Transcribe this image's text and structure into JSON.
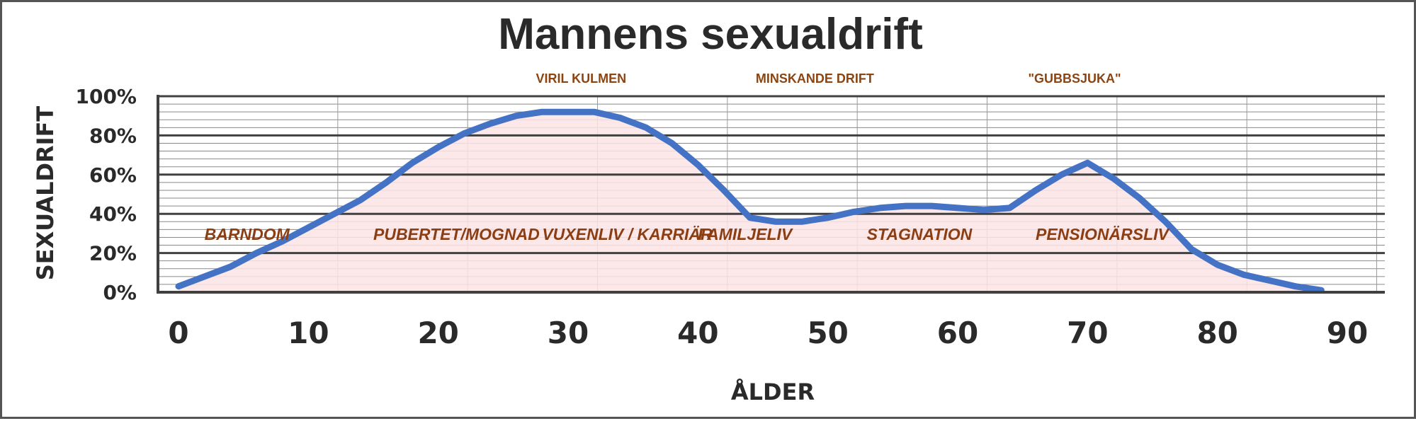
{
  "chart_data": {
    "type": "area",
    "title": "Mannens sexualdrift",
    "xlabel": "ÅLDER",
    "ylabel": "SEXUALDRIFT",
    "xlim": [
      0,
      90
    ],
    "ylim": [
      0,
      100
    ],
    "x_ticks": [
      0,
      10,
      20,
      30,
      40,
      50,
      60,
      70,
      80,
      90
    ],
    "x_tick_labels": [
      "0",
      "10",
      "20",
      "30",
      "40",
      "50",
      "60",
      "70",
      "80",
      "90"
    ],
    "y_ticks": [
      0,
      20,
      40,
      60,
      80,
      100
    ],
    "y_tick_labels": [
      "0%",
      "20%",
      "40%",
      "60%",
      "80%",
      "100%"
    ],
    "grid": true,
    "series": [
      {
        "x": [
          0,
          2,
          4,
          6,
          8,
          10,
          12,
          14,
          16,
          18,
          20,
          22,
          24,
          26,
          28,
          30,
          32,
          34,
          36,
          38,
          40,
          42,
          44,
          46,
          48,
          50,
          52,
          54,
          56,
          58,
          60,
          62,
          64,
          66,
          68,
          70,
          72,
          74,
          76,
          78,
          80,
          82,
          84,
          86,
          88
        ],
        "values": [
          3,
          8,
          13,
          20,
          26,
          33,
          40,
          47,
          56,
          66,
          74,
          81,
          86,
          90,
          92,
          92,
          92,
          89,
          84,
          76,
          65,
          52,
          38,
          36,
          36,
          38,
          41,
          43,
          44,
          44,
          43,
          42,
          43,
          52,
          60,
          66,
          58,
          48,
          36,
          22,
          14,
          9,
          6,
          3,
          1
        ],
        "color": "#4472c4",
        "fill": "#fbe4e4"
      }
    ],
    "annotations": [
      {
        "text": "VIRIL KULMEN",
        "x": 31
      },
      {
        "text": "MINSKANDE DRIFT",
        "x": 49
      },
      {
        "text": "\"GUBBSJUKA\"",
        "x": 69
      }
    ],
    "phases": [
      {
        "text": "BARNDOM",
        "x": 2
      },
      {
        "text": "PUBERTET/MOGNAD",
        "x": 15
      },
      {
        "text": "VUXENLIV / KARRIÄR",
        "x": 28
      },
      {
        "text": "FAMILJELIV",
        "x": 40
      },
      {
        "text": "STAGNATION",
        "x": 53
      },
      {
        "text": "PENSIONÄRSLIV",
        "x": 66
      }
    ],
    "colors": {
      "line": "#4472c4",
      "fill": "#fbe4e4",
      "annotation": "#8b4513",
      "phase": "#8b3e14",
      "axis": "#404040",
      "text": "#2a2a2a"
    }
  }
}
